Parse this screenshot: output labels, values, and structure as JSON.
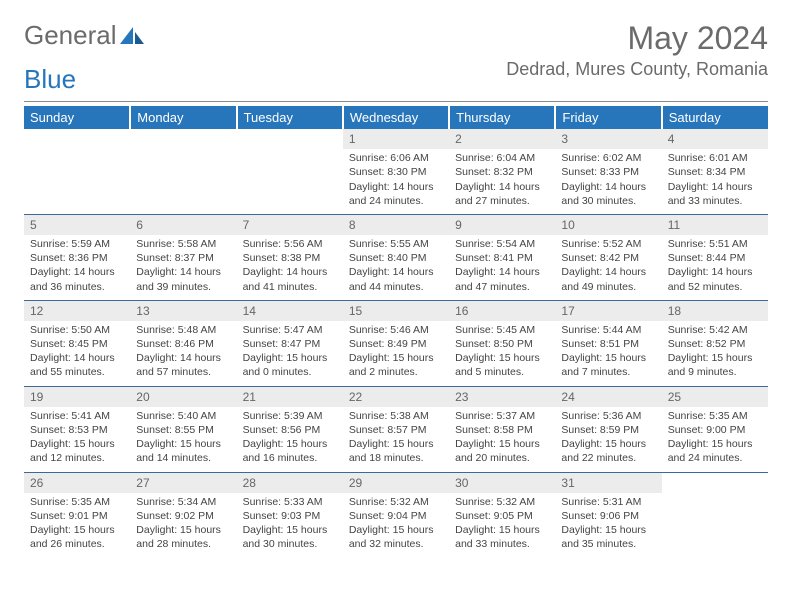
{
  "logo": {
    "text1": "General",
    "text2": "Blue"
  },
  "title": "May 2024",
  "location": "Dedrad, Mures County, Romania",
  "colors": {
    "brand": "#2776bb",
    "grey": "#6b6b6b",
    "cellHeader": "#ececec",
    "rowBorder": "#3a6a9a"
  },
  "dayHeaders": [
    "Sunday",
    "Monday",
    "Tuesday",
    "Wednesday",
    "Thursday",
    "Friday",
    "Saturday"
  ],
  "weeks": [
    [
      {
        "n": "",
        "sr": "",
        "ss": "",
        "dl": ""
      },
      {
        "n": "",
        "sr": "",
        "ss": "",
        "dl": ""
      },
      {
        "n": "",
        "sr": "",
        "ss": "",
        "dl": ""
      },
      {
        "n": "1",
        "sr": "Sunrise: 6:06 AM",
        "ss": "Sunset: 8:30 PM",
        "dl": "Daylight: 14 hours and 24 minutes."
      },
      {
        "n": "2",
        "sr": "Sunrise: 6:04 AM",
        "ss": "Sunset: 8:32 PM",
        "dl": "Daylight: 14 hours and 27 minutes."
      },
      {
        "n": "3",
        "sr": "Sunrise: 6:02 AM",
        "ss": "Sunset: 8:33 PM",
        "dl": "Daylight: 14 hours and 30 minutes."
      },
      {
        "n": "4",
        "sr": "Sunrise: 6:01 AM",
        "ss": "Sunset: 8:34 PM",
        "dl": "Daylight: 14 hours and 33 minutes."
      }
    ],
    [
      {
        "n": "5",
        "sr": "Sunrise: 5:59 AM",
        "ss": "Sunset: 8:36 PM",
        "dl": "Daylight: 14 hours and 36 minutes."
      },
      {
        "n": "6",
        "sr": "Sunrise: 5:58 AM",
        "ss": "Sunset: 8:37 PM",
        "dl": "Daylight: 14 hours and 39 minutes."
      },
      {
        "n": "7",
        "sr": "Sunrise: 5:56 AM",
        "ss": "Sunset: 8:38 PM",
        "dl": "Daylight: 14 hours and 41 minutes."
      },
      {
        "n": "8",
        "sr": "Sunrise: 5:55 AM",
        "ss": "Sunset: 8:40 PM",
        "dl": "Daylight: 14 hours and 44 minutes."
      },
      {
        "n": "9",
        "sr": "Sunrise: 5:54 AM",
        "ss": "Sunset: 8:41 PM",
        "dl": "Daylight: 14 hours and 47 minutes."
      },
      {
        "n": "10",
        "sr": "Sunrise: 5:52 AM",
        "ss": "Sunset: 8:42 PM",
        "dl": "Daylight: 14 hours and 49 minutes."
      },
      {
        "n": "11",
        "sr": "Sunrise: 5:51 AM",
        "ss": "Sunset: 8:44 PM",
        "dl": "Daylight: 14 hours and 52 minutes."
      }
    ],
    [
      {
        "n": "12",
        "sr": "Sunrise: 5:50 AM",
        "ss": "Sunset: 8:45 PM",
        "dl": "Daylight: 14 hours and 55 minutes."
      },
      {
        "n": "13",
        "sr": "Sunrise: 5:48 AM",
        "ss": "Sunset: 8:46 PM",
        "dl": "Daylight: 14 hours and 57 minutes."
      },
      {
        "n": "14",
        "sr": "Sunrise: 5:47 AM",
        "ss": "Sunset: 8:47 PM",
        "dl": "Daylight: 15 hours and 0 minutes."
      },
      {
        "n": "15",
        "sr": "Sunrise: 5:46 AM",
        "ss": "Sunset: 8:49 PM",
        "dl": "Daylight: 15 hours and 2 minutes."
      },
      {
        "n": "16",
        "sr": "Sunrise: 5:45 AM",
        "ss": "Sunset: 8:50 PM",
        "dl": "Daylight: 15 hours and 5 minutes."
      },
      {
        "n": "17",
        "sr": "Sunrise: 5:44 AM",
        "ss": "Sunset: 8:51 PM",
        "dl": "Daylight: 15 hours and 7 minutes."
      },
      {
        "n": "18",
        "sr": "Sunrise: 5:42 AM",
        "ss": "Sunset: 8:52 PM",
        "dl": "Daylight: 15 hours and 9 minutes."
      }
    ],
    [
      {
        "n": "19",
        "sr": "Sunrise: 5:41 AM",
        "ss": "Sunset: 8:53 PM",
        "dl": "Daylight: 15 hours and 12 minutes."
      },
      {
        "n": "20",
        "sr": "Sunrise: 5:40 AM",
        "ss": "Sunset: 8:55 PM",
        "dl": "Daylight: 15 hours and 14 minutes."
      },
      {
        "n": "21",
        "sr": "Sunrise: 5:39 AM",
        "ss": "Sunset: 8:56 PM",
        "dl": "Daylight: 15 hours and 16 minutes."
      },
      {
        "n": "22",
        "sr": "Sunrise: 5:38 AM",
        "ss": "Sunset: 8:57 PM",
        "dl": "Daylight: 15 hours and 18 minutes."
      },
      {
        "n": "23",
        "sr": "Sunrise: 5:37 AM",
        "ss": "Sunset: 8:58 PM",
        "dl": "Daylight: 15 hours and 20 minutes."
      },
      {
        "n": "24",
        "sr": "Sunrise: 5:36 AM",
        "ss": "Sunset: 8:59 PM",
        "dl": "Daylight: 15 hours and 22 minutes."
      },
      {
        "n": "25",
        "sr": "Sunrise: 5:35 AM",
        "ss": "Sunset: 9:00 PM",
        "dl": "Daylight: 15 hours and 24 minutes."
      }
    ],
    [
      {
        "n": "26",
        "sr": "Sunrise: 5:35 AM",
        "ss": "Sunset: 9:01 PM",
        "dl": "Daylight: 15 hours and 26 minutes."
      },
      {
        "n": "27",
        "sr": "Sunrise: 5:34 AM",
        "ss": "Sunset: 9:02 PM",
        "dl": "Daylight: 15 hours and 28 minutes."
      },
      {
        "n": "28",
        "sr": "Sunrise: 5:33 AM",
        "ss": "Sunset: 9:03 PM",
        "dl": "Daylight: 15 hours and 30 minutes."
      },
      {
        "n": "29",
        "sr": "Sunrise: 5:32 AM",
        "ss": "Sunset: 9:04 PM",
        "dl": "Daylight: 15 hours and 32 minutes."
      },
      {
        "n": "30",
        "sr": "Sunrise: 5:32 AM",
        "ss": "Sunset: 9:05 PM",
        "dl": "Daylight: 15 hours and 33 minutes."
      },
      {
        "n": "31",
        "sr": "Sunrise: 5:31 AM",
        "ss": "Sunset: 9:06 PM",
        "dl": "Daylight: 15 hours and 35 minutes."
      },
      {
        "n": "",
        "sr": "",
        "ss": "",
        "dl": ""
      }
    ]
  ]
}
